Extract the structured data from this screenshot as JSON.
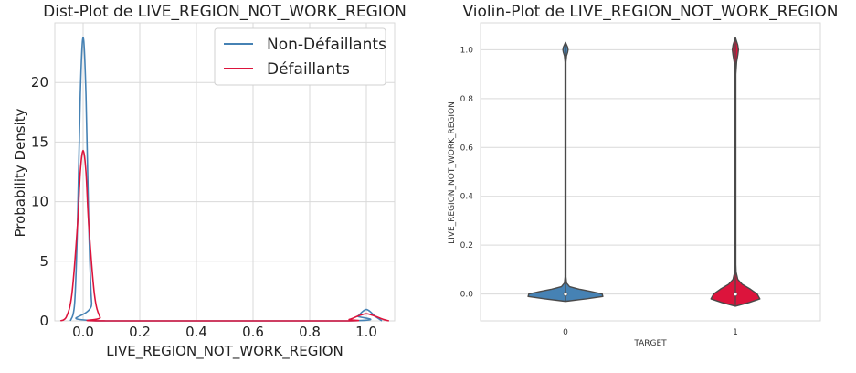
{
  "chart_data": [
    {
      "type": "line",
      "title": "Dist-Plot de LIVE_REGION_NOT_WORK_REGION",
      "xlabel": "LIVE_REGION_NOT_WORK_REGION",
      "ylabel": "Probability Density",
      "xlim": [
        -0.1,
        1.1
      ],
      "ylim": [
        0,
        25
      ],
      "xticks": [
        "0.0",
        "0.2",
        "0.4",
        "0.6",
        "0.8",
        "1.0"
      ],
      "yticks": [
        "0",
        "5",
        "10",
        "15",
        "20"
      ],
      "grid": true,
      "legend_position": "top-right",
      "series": [
        {
          "name": "Non-Défaillants",
          "color": "#4682b4",
          "x": [
            -0.045,
            -0.03,
            -0.02,
            -0.01,
            0.0,
            0.01,
            0.02,
            0.03,
            0.045,
            0.94,
            0.97,
            0.985,
            1.0,
            1.015,
            1.03,
            1.055
          ],
          "y": [
            0.0,
            1.5,
            8.0,
            19.0,
            23.8,
            19.0,
            8.0,
            1.5,
            0.0,
            0.0,
            0.4,
            0.75,
            0.95,
            0.75,
            0.4,
            0.0
          ]
        },
        {
          "name": "Défaillants",
          "color": "#dc143c",
          "x": [
            -0.08,
            -0.06,
            -0.04,
            -0.02,
            -0.01,
            0.0,
            0.01,
            0.02,
            0.04,
            0.06,
            0.08,
            0.9,
            0.94,
            0.97,
            1.0,
            1.03,
            1.06,
            1.08
          ],
          "y": [
            0.0,
            0.3,
            2.2,
            8.0,
            12.5,
            14.3,
            12.5,
            8.0,
            2.2,
            0.3,
            0.0,
            0.0,
            0.12,
            0.4,
            0.6,
            0.4,
            0.12,
            0.0
          ]
        }
      ]
    },
    {
      "type": "violin",
      "title": "Violin-Plot de LIVE_REGION_NOT_WORK_REGION",
      "xlabel": "TARGET",
      "ylabel": "LIVE_REGION_NOT_WORK_REGION",
      "categories": [
        "0",
        "1"
      ],
      "colors": [
        "#4682b4",
        "#dc143c"
      ],
      "ylim": [
        -0.11,
        1.11
      ],
      "yticks": [
        "0.0",
        "0.2",
        "0.4",
        "0.6",
        "0.8",
        "1.0"
      ],
      "grid": true,
      "violins": [
        {
          "category": "0",
          "median": 0.0,
          "profile": [
            [
              -0.03,
              0.0
            ],
            [
              -0.02,
              0.3
            ],
            [
              -0.01,
              0.55
            ],
            [
              0.0,
              0.54
            ],
            [
              0.01,
              0.38
            ],
            [
              0.02,
              0.2
            ],
            [
              0.03,
              0.06
            ],
            [
              0.045,
              0.015
            ],
            [
              0.07,
              0.006
            ],
            [
              0.5,
              0.006
            ],
            [
              0.95,
              0.006
            ],
            [
              0.975,
              0.015
            ],
            [
              0.99,
              0.032
            ],
            [
              1.0,
              0.038
            ],
            [
              1.01,
              0.032
            ],
            [
              1.03,
              0.0
            ]
          ]
        },
        {
          "category": "1",
          "median": 0.0,
          "profile": [
            [
              -0.05,
              0.0
            ],
            [
              -0.035,
              0.2
            ],
            [
              -0.02,
              0.36
            ],
            [
              0.0,
              0.32
            ],
            [
              0.02,
              0.22
            ],
            [
              0.04,
              0.1
            ],
            [
              0.06,
              0.035
            ],
            [
              0.09,
              0.01
            ],
            [
              0.12,
              0.006
            ],
            [
              0.5,
              0.006
            ],
            [
              0.9,
              0.006
            ],
            [
              0.95,
              0.018
            ],
            [
              0.98,
              0.036
            ],
            [
              1.0,
              0.045
            ],
            [
              1.02,
              0.034
            ],
            [
              1.05,
              0.0
            ]
          ]
        }
      ]
    }
  ]
}
